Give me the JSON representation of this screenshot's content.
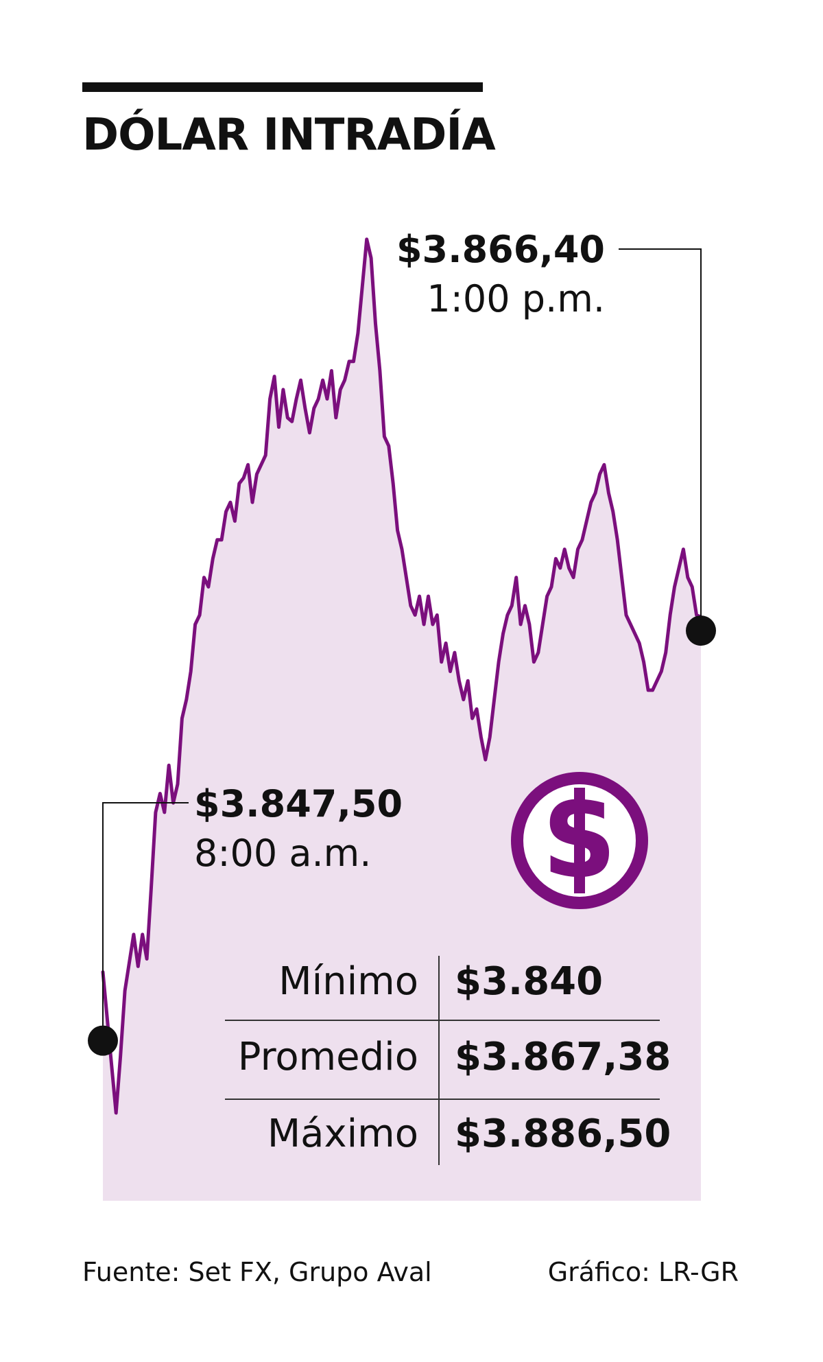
{
  "title": "DÓLAR INTRADÍA",
  "colors": {
    "line": "#7b0f7d",
    "fill": "#eee0ee",
    "ink": "#111111",
    "icon": "#7b0f7d"
  },
  "icon": "dollar-coin-icon",
  "chart_data": {
    "type": "area",
    "title": "DÓLAR INTRADÍA",
    "xlabel": "",
    "ylabel": "",
    "y_unit": "COP per USD",
    "x_start": "8:00 a.m.",
    "x_end": "1:00 p.m.",
    "ylim": [
      3838,
      3887
    ],
    "grid": false,
    "legend": "none",
    "series": [
      {
        "values": [
          3847.5,
          3845.0,
          3842.5,
          3840.0,
          3843.0,
          3846.5,
          3848.0,
          3849.5,
          3847.8,
          3849.5,
          3848.2,
          3852.0,
          3856.0,
          3857.0,
          3856.0,
          3858.5,
          3856.5,
          3857.5,
          3861.0,
          3862.0,
          3863.5,
          3866.0,
          3866.5,
          3868.5,
          3868.0,
          3869.5,
          3870.5,
          3870.5,
          3872.0,
          3872.5,
          3871.5,
          3873.5,
          3873.8,
          3874.5,
          3872.5,
          3874.0,
          3874.5,
          3875.0,
          3878.0,
          3879.2,
          3876.5,
          3878.5,
          3877.0,
          3876.8,
          3878.0,
          3879.0,
          3877.5,
          3876.2,
          3877.5,
          3878.0,
          3879.0,
          3878.0,
          3879.5,
          3877.0,
          3878.5,
          3879.0,
          3880.0,
          3880.0,
          3881.5,
          3884.0,
          3886.5,
          3885.5,
          3882.0,
          3879.5,
          3876.0,
          3875.5,
          3873.5,
          3871.0,
          3870.0,
          3868.5,
          3867.0,
          3866.5,
          3867.5,
          3866.0,
          3867.5,
          3866.0,
          3866.5,
          3864.0,
          3865.0,
          3863.5,
          3864.5,
          3863.0,
          3862.0,
          3863.0,
          3861.0,
          3861.5,
          3860.0,
          3858.8,
          3860.0,
          3862.0,
          3864.0,
          3865.5,
          3866.5,
          3867.0,
          3868.5,
          3866.0,
          3867.0,
          3866.0,
          3864.0,
          3864.5,
          3866.0,
          3867.5,
          3868.0,
          3869.5,
          3869.0,
          3870.0,
          3869.0,
          3868.5,
          3870.0,
          3870.5,
          3871.5,
          3872.5,
          3873.0,
          3874.0,
          3874.5,
          3873.0,
          3872.0,
          3870.5,
          3868.5,
          3866.5,
          3866.0,
          3865.5,
          3865.0,
          3864.0,
          3862.5,
          3862.5,
          3863.0,
          3863.5,
          3864.5,
          3866.5,
          3868.0,
          3869.0,
          3870.0,
          3868.5,
          3868.0,
          3866.5,
          3866.4
        ]
      }
    ],
    "annotations": [
      {
        "price": "$3.847,50",
        "time": "8:00 a.m."
      },
      {
        "price": "$3.866,40",
        "time": "1:00 p.m."
      }
    ]
  },
  "stats": [
    {
      "label": "Mínimo",
      "value": "$3.840"
    },
    {
      "label": "Promedio",
      "value": "$3.867,38"
    },
    {
      "label": "Máximo",
      "value": "$3.886,50"
    }
  ],
  "footer": {
    "source": "Fuente: Set FX, Grupo Aval",
    "credit": "Gráfico: LR-GR"
  }
}
